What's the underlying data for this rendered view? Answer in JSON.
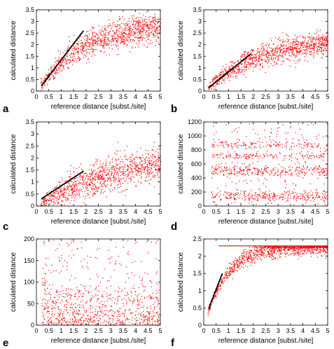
{
  "figure": {
    "colors": {
      "points": "#ff0000",
      "fit_line": "#000000",
      "axis": "#000000"
    }
  },
  "chart_data": [
    {
      "panel": "a",
      "type": "scatter",
      "xlabel": "reference distance [subst./site]",
      "ylabel": "calculated distance",
      "xlim": [
        0,
        5
      ],
      "ylim": [
        0,
        3.5
      ],
      "xticks": [
        "0",
        "0.5",
        "1",
        "1.5",
        "2",
        "2.5",
        "3",
        "3.5",
        "4",
        "4.5",
        "5"
      ],
      "yticks": [
        "0",
        "0.5",
        "1",
        "1.5",
        "2",
        "2.5",
        "3",
        "3.5"
      ],
      "fit_line": [
        [
          0.2,
          0.22
        ],
        [
          1.9,
          2.6
        ]
      ],
      "trend": {
        "model": "saturating",
        "shape": "approach",
        "ymax": 3.0,
        "k": 1.3,
        "spread": 0.3
      },
      "grid": false,
      "legend": false
    },
    {
      "panel": "b",
      "type": "scatter",
      "xlabel": "reference distance [subst./site]",
      "ylabel": "calculated distance",
      "xlim": [
        0,
        5
      ],
      "ylim": [
        0,
        3.5
      ],
      "xticks": [
        "0",
        "0.5",
        "1",
        "1.5",
        "2",
        "2.5",
        "3",
        "3.5",
        "4",
        "4.5",
        "5"
      ],
      "yticks": [
        "0",
        "0.5",
        "1",
        "1.5",
        "2",
        "2.5",
        "3",
        "3.5"
      ],
      "fit_line": [
        [
          0.2,
          0.15
        ],
        [
          1.9,
          1.6
        ]
      ],
      "trend": {
        "model": "saturating",
        "shape": "approach",
        "ymax": 2.25,
        "k": 0.9,
        "spread": 0.25
      },
      "grid": false,
      "legend": false
    },
    {
      "panel": "c",
      "type": "scatter",
      "xlabel": "reference distance [subst./site]",
      "ylabel": "calculated distance",
      "xlim": [
        0,
        5
      ],
      "ylim": [
        0,
        3.5
      ],
      "xticks": [
        "0",
        "0.5",
        "1",
        "1.5",
        "2",
        "2.5",
        "3",
        "3.5",
        "4",
        "4.5",
        "5"
      ],
      "yticks": [
        "0",
        "0.5",
        "1",
        "1.5",
        "2",
        "2.5",
        "3",
        "3.5"
      ],
      "fit_line": [
        [
          0.2,
          0.3
        ],
        [
          1.9,
          1.45
        ]
      ],
      "trend": {
        "model": "saturating",
        "shape": "approach",
        "ymax": 2.4,
        "k": 0.55,
        "spread": 0.35
      },
      "grid": false,
      "legend": false
    },
    {
      "panel": "d",
      "type": "scatter",
      "xlabel": "reference distance [subst./site]",
      "ylabel": "calculated distance",
      "xlim": [
        0,
        5
      ],
      "ylim": [
        0,
        1200
      ],
      "xticks": [
        "0",
        "0.5",
        "1",
        "1.5",
        "2",
        "2.5",
        "3",
        "3.5",
        "4",
        "4.5",
        "5"
      ],
      "yticks": [
        "0",
        "200",
        "400",
        "600",
        "800",
        "1000",
        "1200"
      ],
      "trend": {
        "model": "bands",
        "bands": [
          120,
          180,
          480,
          540,
          720,
          880
        ],
        "spread": 25,
        "xmin": 0.3
      },
      "grid": false,
      "legend": false
    },
    {
      "panel": "e",
      "type": "scatter",
      "xlabel": "reference distance [subst./site]",
      "ylabel": "calculated distance",
      "xlim": [
        0,
        5
      ],
      "ylim": [
        0,
        200
      ],
      "xticks": [
        "0",
        "0.5",
        "1",
        "1.5",
        "2",
        "2.5",
        "3",
        "3.5",
        "4",
        "4.5",
        "5"
      ],
      "yticks": [
        "0",
        "50",
        "100",
        "150",
        "200"
      ],
      "trend": {
        "model": "bands",
        "bands": [
          3,
          5,
          35,
          70
        ],
        "spread": 15,
        "xmin": 0.2
      },
      "grid": false,
      "legend": false
    },
    {
      "panel": "f",
      "type": "scatter",
      "xlabel": "reference distance [subst./site]",
      "ylabel": "calculated distance",
      "xlim": [
        0,
        5
      ],
      "ylim": [
        0,
        2.5
      ],
      "xticks": [
        "0",
        "0.5",
        "1",
        "1.5",
        "2",
        "2.5",
        "3",
        "3.5",
        "4",
        "4.5",
        "5"
      ],
      "yticks": [
        "0",
        "0.5",
        "1",
        "1.5",
        "2",
        "2.5"
      ],
      "fit_line": [
        [
          0.2,
          0.48
        ],
        [
          0.75,
          1.5
        ]
      ],
      "ref_line": [
        [
          0.6,
          2.3
        ],
        [
          5,
          2.3
        ]
      ],
      "trend": {
        "model": "saturating",
        "shape": "approach",
        "ymax": 2.3,
        "k": 2.2,
        "spread": 0.12,
        "cap": 2.3
      },
      "grid": false,
      "legend": false
    }
  ]
}
